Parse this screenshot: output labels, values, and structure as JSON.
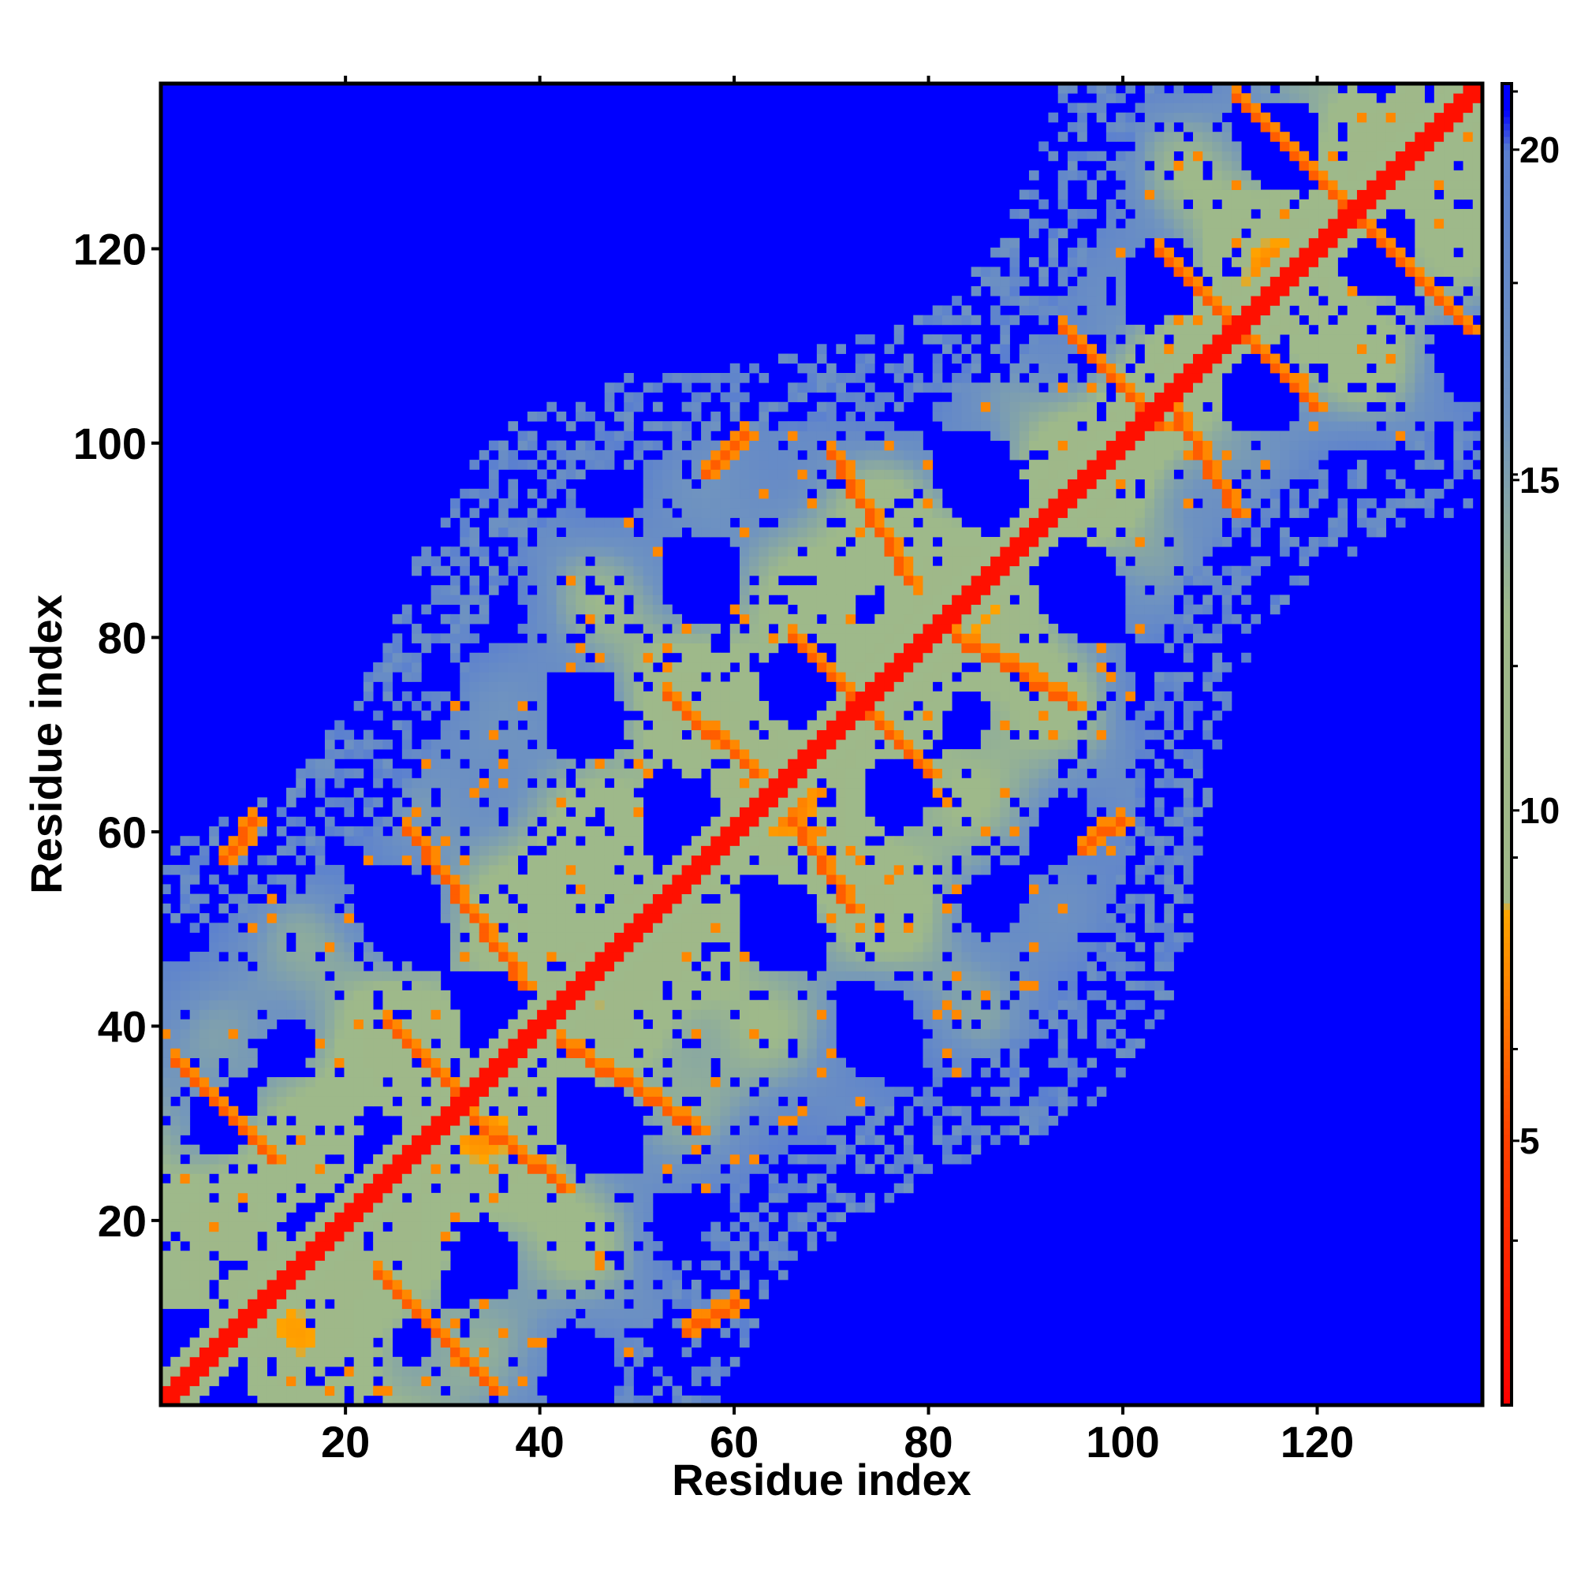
{
  "chart_data": {
    "type": "heatmap",
    "title": "",
    "xlabel": "Residue index",
    "ylabel": "Residue index",
    "n_residues": 137,
    "xlim": [
      1,
      137
    ],
    "ylim": [
      1,
      137
    ],
    "x_ticks": [
      20,
      40,
      60,
      80,
      100,
      120
    ],
    "y_ticks": [
      20,
      40,
      60,
      80,
      100,
      120
    ],
    "colorbar": {
      "ticks": [
        5,
        10,
        15,
        20
      ],
      "range": [
        1,
        21
      ],
      "stops": [
        {
          "value": 1,
          "color": "#ff0000"
        },
        {
          "value": 5,
          "color": "#ff4000"
        },
        {
          "value": 8.5,
          "color": "#ffa500"
        },
        {
          "value": 8.6,
          "color": "#9fb889"
        },
        {
          "value": 13,
          "color": "#9eb98a"
        },
        {
          "value": 16,
          "color": "#6f93c0"
        },
        {
          "value": 20,
          "color": "#5a7fd0"
        },
        {
          "value": 20.6,
          "color": "#0000ff"
        },
        {
          "value": 21,
          "color": "#0000ff"
        }
      ]
    },
    "background_value": 21,
    "diagonal_value": 2,
    "beta_contacts": [
      {
        "type": "anti",
        "i1": 2,
        "j1": 36,
        "i2": 12,
        "j2": 26,
        "value": 6
      },
      {
        "type": "anti",
        "i1": 23,
        "j1": 14,
        "i2": 35,
        "j2": 2,
        "value": 6
      },
      {
        "type": "anti",
        "i1": 24,
        "j1": 40,
        "i2": 32,
        "j2": 32,
        "value": 6
      },
      {
        "type": "anti",
        "i1": 33,
        "j1": 30,
        "i2": 42,
        "j2": 23,
        "value": 6
      },
      {
        "type": "anti",
        "i1": 26,
        "j1": 60,
        "i2": 38,
        "j2": 44,
        "value": 6
      },
      {
        "type": "anti",
        "i1": 42,
        "j1": 38,
        "i2": 56,
        "j2": 29,
        "value": 6
      },
      {
        "type": "para",
        "i1": 7,
        "j1": 57,
        "i2": 10,
        "j2": 61,
        "value": 6
      },
      {
        "type": "para",
        "i1": 55,
        "j1": 8,
        "i2": 60,
        "j2": 11,
        "value": 6
      },
      {
        "type": "anti",
        "i1": 53,
        "j1": 74,
        "i2": 62,
        "j2": 66,
        "value": 6
      },
      {
        "type": "anti",
        "i1": 66,
        "j1": 61,
        "i2": 72,
        "j2": 52,
        "value": 6
      },
      {
        "type": "anti",
        "i1": 66,
        "j1": 80,
        "i2": 73,
        "j2": 73,
        "value": 6
      },
      {
        "type": "anti",
        "i1": 74,
        "j1": 72,
        "i2": 80,
        "j2": 66,
        "value": 6
      },
      {
        "type": "anti",
        "i1": 70,
        "j1": 99,
        "i2": 78,
        "j2": 86,
        "value": 6
      },
      {
        "type": "anti",
        "i1": 83,
        "j1": 80,
        "i2": 95,
        "j2": 73,
        "value": 6
      },
      {
        "type": "para",
        "i1": 96,
        "j1": 58,
        "i2": 100,
        "j2": 61,
        "value": 6
      },
      {
        "type": "para",
        "i1": 57,
        "j1": 97,
        "i2": 61,
        "j2": 101,
        "value": 6
      },
      {
        "type": "anti",
        "i1": 94,
        "j1": 112,
        "i2": 104,
        "j2": 102,
        "value": 6
      },
      {
        "type": "anti",
        "i1": 105,
        "j1": 104,
        "i2": 112,
        "j2": 93,
        "value": 6
      },
      {
        "type": "anti",
        "i1": 104,
        "j1": 120,
        "i2": 112,
        "j2": 112,
        "value": 6
      },
      {
        "type": "anti",
        "i1": 113,
        "j1": 111,
        "i2": 120,
        "j2": 104,
        "value": 6
      },
      {
        "type": "anti",
        "i1": 112,
        "j1": 136,
        "i2": 124,
        "j2": 124,
        "value": 6
      },
      {
        "type": "anti",
        "i1": 124,
        "j1": 124,
        "i2": 136,
        "j2": 112,
        "value": 6
      }
    ]
  }
}
